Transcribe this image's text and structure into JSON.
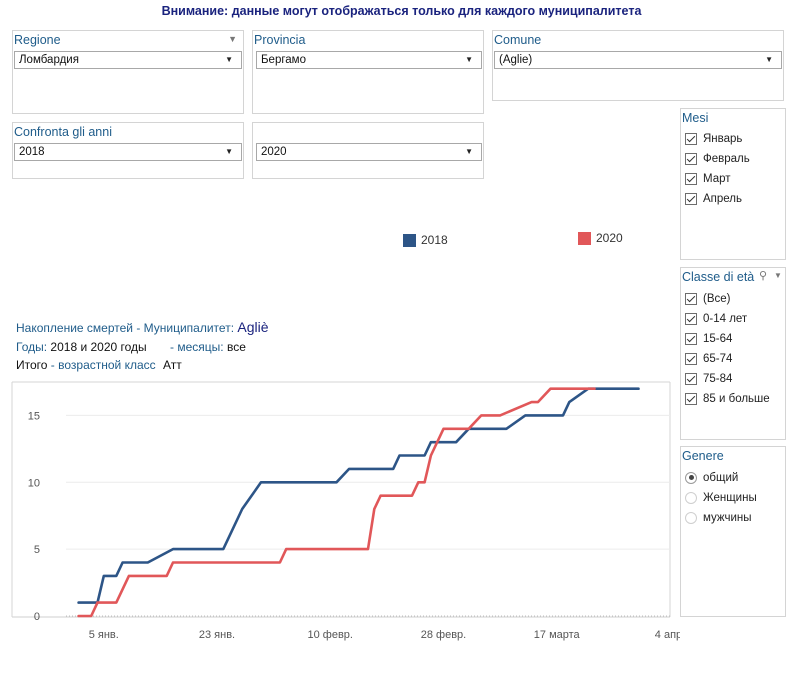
{
  "banner": "Внимание: данные могут отображаться только для каждого муниципалитета",
  "filters": {
    "regione": {
      "title": "Regione",
      "value": "Ломбардия"
    },
    "provincia": {
      "title": "Provincia",
      "value": "Бергамо"
    },
    "comune": {
      "title": "Comune",
      "value": "(Aglie)"
    },
    "confronta": {
      "title": "Confronta gli anni",
      "value": "2018"
    },
    "year2": {
      "value": "2020"
    }
  },
  "mesi": {
    "title": "Mesi",
    "items": [
      "Январь",
      "Февраль",
      "Март",
      "Апрель"
    ]
  },
  "classe": {
    "title": "Classe di età",
    "items": [
      "(Все)",
      "0-14 лет",
      "15-64",
      "65-74",
      "75-84",
      "85 и больше"
    ]
  },
  "genere": {
    "title": "Genere",
    "items": [
      "общий",
      "Женщины",
      "мужчины"
    ],
    "selected": "общий"
  },
  "captions": {
    "line1_label": "Накопление смертей - Муниципалитет:",
    "line1_value": "Agliè",
    "line2_label1": "Годы:",
    "line2_value1": "2018 и 2020 годы",
    "line2_label2": "- месяцы:",
    "line2_value2": "все",
    "line3_label1": "Итого",
    "line3_label2": "- возрастной класс",
    "line3_value": "Атт"
  },
  "colors": {
    "s2018": "#2d5587",
    "s2020": "#e15759"
  },
  "chart_data": {
    "type": "line",
    "xlabel": "",
    "ylabel": "",
    "ylim": [
      0,
      17.5
    ],
    "yticks": [
      0,
      5,
      10,
      15
    ],
    "x_range_days": [
      -2,
      94
    ],
    "xticks": [
      {
        "day": 4,
        "label": "5 янв."
      },
      {
        "day": 22,
        "label": "23 янв."
      },
      {
        "day": 40,
        "label": "10 февр."
      },
      {
        "day": 58,
        "label": "28 февр."
      },
      {
        "day": 76,
        "label": "17 марта"
      },
      {
        "day": 94,
        "label": "4 апр."
      }
    ],
    "legend": [
      "2018",
      "2020"
    ],
    "series": [
      {
        "name": "2018",
        "points": [
          [
            0,
            1
          ],
          [
            3,
            1
          ],
          [
            4,
            3
          ],
          [
            6,
            3
          ],
          [
            7,
            4
          ],
          [
            11,
            4
          ],
          [
            15,
            5
          ],
          [
            23,
            5
          ],
          [
            26,
            8
          ],
          [
            29,
            10
          ],
          [
            41,
            10
          ],
          [
            43,
            11
          ],
          [
            50,
            11
          ],
          [
            51,
            12
          ],
          [
            55,
            12
          ],
          [
            56,
            13
          ],
          [
            60,
            13
          ],
          [
            62,
            14
          ],
          [
            68,
            14
          ],
          [
            71,
            15
          ],
          [
            77,
            15
          ],
          [
            78,
            16
          ],
          [
            81,
            17
          ],
          [
            89,
            17
          ]
        ]
      },
      {
        "name": "2020",
        "points": [
          [
            0,
            0
          ],
          [
            2,
            0
          ],
          [
            3,
            1
          ],
          [
            6,
            1
          ],
          [
            8,
            3
          ],
          [
            14,
            3
          ],
          [
            15,
            4
          ],
          [
            32,
            4
          ],
          [
            33,
            5
          ],
          [
            46,
            5
          ],
          [
            47,
            8
          ],
          [
            48,
            9
          ],
          [
            53,
            9
          ],
          [
            54,
            10
          ],
          [
            55,
            10
          ],
          [
            56,
            12
          ],
          [
            58,
            14
          ],
          [
            62,
            14
          ],
          [
            64,
            15
          ],
          [
            67,
            15
          ],
          [
            72,
            16
          ],
          [
            73,
            16
          ],
          [
            75,
            17
          ],
          [
            82,
            17
          ]
        ]
      }
    ]
  }
}
